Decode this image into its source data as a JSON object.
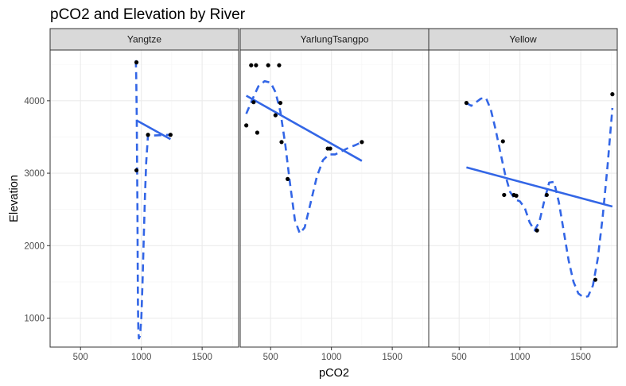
{
  "chart_data": {
    "type": "scatter",
    "title": "pCO2 and Elevation by River",
    "xlabel": "pCO2",
    "ylabel": "Elevation",
    "xlim": [
      250,
      1800
    ],
    "ylim": [
      600,
      4700
    ],
    "x_ticks": [
      500,
      1000,
      1500
    ],
    "y_ticks": [
      1000,
      2000,
      3000,
      4000
    ],
    "grid": true,
    "legend": "none",
    "colors": {
      "points": "#000000",
      "fit": "#3366e6",
      "panel_border": "#333333",
      "strip_fill": "#d9d9d9",
      "grid": "#ebebeb"
    },
    "panels": [
      {
        "name": "Yangtze",
        "points": [
          [
            960,
            4530
          ],
          [
            960,
            3040
          ],
          [
            1055,
            3530
          ],
          [
            1240,
            3530
          ]
        ],
        "linear_fit": [
          [
            960,
            3730
          ],
          [
            1240,
            3470
          ]
        ],
        "smooth_fit": [
          [
            955,
            4560
          ],
          [
            958,
            4300
          ],
          [
            962,
            3800
          ],
          [
            965,
            3200
          ],
          [
            968,
            2500
          ],
          [
            970,
            1800
          ],
          [
            972,
            1200
          ],
          [
            975,
            850
          ],
          [
            980,
            720
          ],
          [
            990,
            760
          ],
          [
            1000,
            1000
          ],
          [
            1010,
            1500
          ],
          [
            1020,
            2100
          ],
          [
            1030,
            2700
          ],
          [
            1040,
            3150
          ],
          [
            1055,
            3530
          ],
          [
            1100,
            3520
          ],
          [
            1240,
            3530
          ]
        ]
      },
      {
        "name": "YarlungTsangpo",
        "points": [
          [
            300,
            3660
          ],
          [
            340,
            4490
          ],
          [
            360,
            3980
          ],
          [
            380,
            4490
          ],
          [
            390,
            3560
          ],
          [
            480,
            4490
          ],
          [
            540,
            3800
          ],
          [
            570,
            4490
          ],
          [
            580,
            3970
          ],
          [
            590,
            3430
          ],
          [
            640,
            2920
          ],
          [
            970,
            3340
          ],
          [
            990,
            3340
          ],
          [
            1250,
            3430
          ]
        ],
        "linear_fit": [
          [
            300,
            4070
          ],
          [
            1250,
            3170
          ]
        ],
        "smooth_fit": [
          [
            300,
            3820
          ],
          [
            350,
            4020
          ],
          [
            400,
            4200
          ],
          [
            450,
            4270
          ],
          [
            500,
            4250
          ],
          [
            540,
            4120
          ],
          [
            580,
            3850
          ],
          [
            620,
            3400
          ],
          [
            660,
            2850
          ],
          [
            700,
            2350
          ],
          [
            740,
            2170
          ],
          [
            780,
            2250
          ],
          [
            830,
            2600
          ],
          [
            880,
            2950
          ],
          [
            930,
            3180
          ],
          [
            980,
            3260
          ],
          [
            1030,
            3260
          ],
          [
            1080,
            3300
          ],
          [
            1140,
            3350
          ],
          [
            1200,
            3390
          ],
          [
            1250,
            3430
          ]
        ]
      },
      {
        "name": "Yellow",
        "points": [
          [
            560,
            3970
          ],
          [
            860,
            3440
          ],
          [
            870,
            2700
          ],
          [
            950,
            2700
          ],
          [
            970,
            2690
          ],
          [
            1140,
            2210
          ],
          [
            1220,
            2700
          ],
          [
            1620,
            1530
          ],
          [
            1760,
            4090
          ]
        ],
        "linear_fit": [
          [
            560,
            3080
          ],
          [
            1760,
            2540
          ]
        ],
        "smooth_fit": [
          [
            560,
            3970
          ],
          [
            600,
            3930
          ],
          [
            640,
            3980
          ],
          [
            680,
            4030
          ],
          [
            720,
            4040
          ],
          [
            760,
            3880
          ],
          [
            800,
            3600
          ],
          [
            840,
            3280
          ],
          [
            880,
            2970
          ],
          [
            920,
            2740
          ],
          [
            960,
            2640
          ],
          [
            1000,
            2610
          ],
          [
            1040,
            2520
          ],
          [
            1080,
            2320
          ],
          [
            1120,
            2210
          ],
          [
            1160,
            2330
          ],
          [
            1200,
            2620
          ],
          [
            1240,
            2870
          ],
          [
            1280,
            2880
          ],
          [
            1320,
            2600
          ],
          [
            1360,
            2200
          ],
          [
            1400,
            1800
          ],
          [
            1440,
            1500
          ],
          [
            1480,
            1340
          ],
          [
            1520,
            1290
          ],
          [
            1560,
            1300
          ],
          [
            1600,
            1450
          ],
          [
            1640,
            1820
          ],
          [
            1680,
            2400
          ],
          [
            1720,
            3100
          ],
          [
            1760,
            3900
          ]
        ]
      }
    ]
  }
}
